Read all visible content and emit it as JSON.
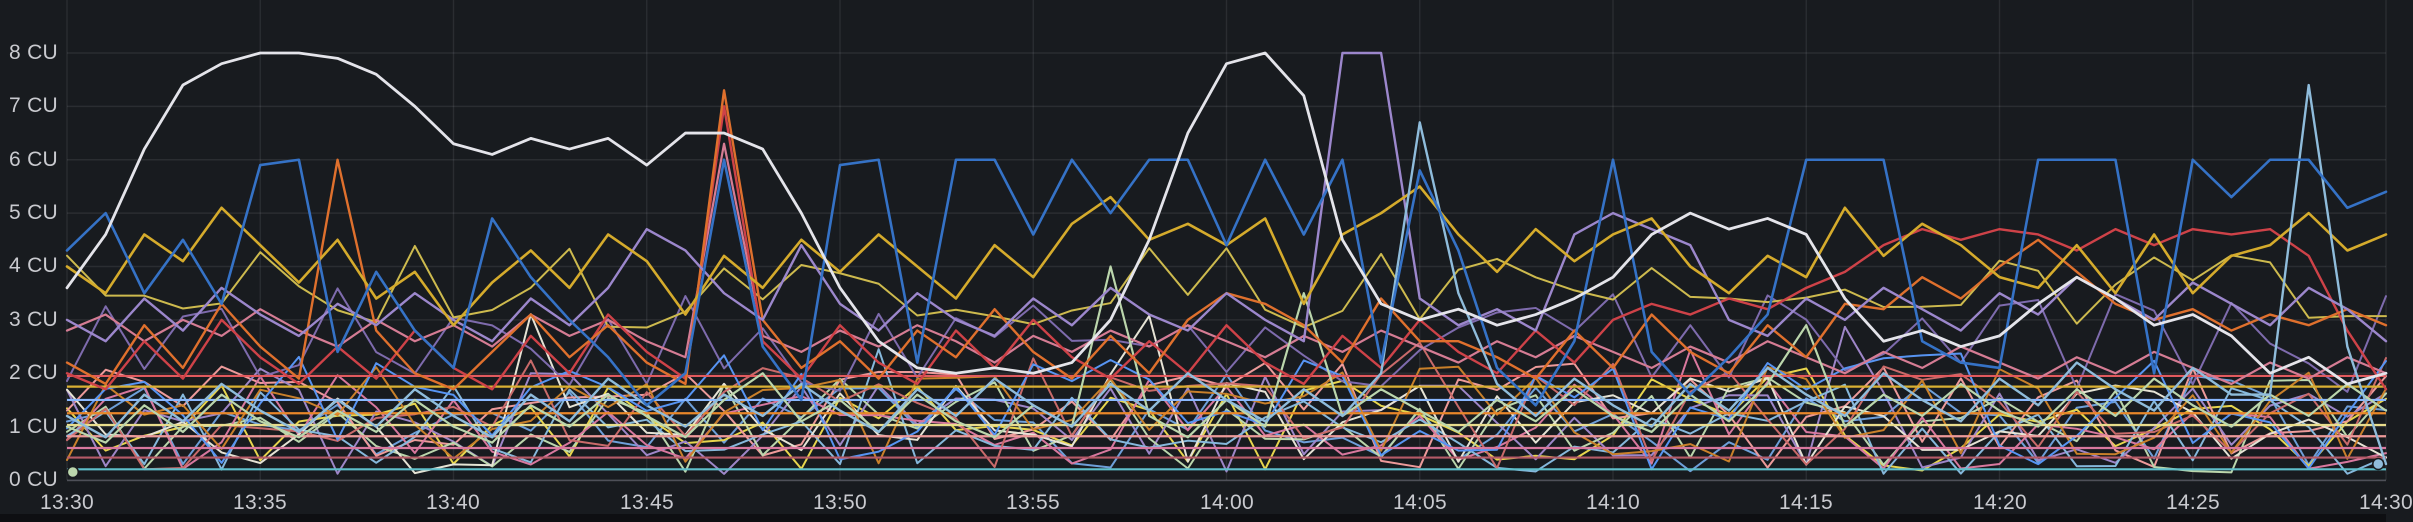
{
  "panel": {
    "background": "#181b1f",
    "text_color": "#c9cacf",
    "grid_color": "rgba(204,204,220,0.10)",
    "axis_line_color": "rgba(204,204,220,0.25)",
    "unit": "CU"
  },
  "chart_data": {
    "type": "line",
    "title": "",
    "xlabel": "",
    "ylabel": "CU",
    "ylim": [
      0,
      9
    ],
    "x_range_minutes": [
      0,
      60
    ],
    "sample_interval_minutes": 1,
    "grid": true,
    "legend_position": "none",
    "y_tick_labels": [
      "8 CU",
      "7 CU",
      "6 CU",
      "5 CU",
      "4 CU",
      "3 CU",
      "2 CU",
      "1 CU",
      "0 CU"
    ],
    "y_tick_values": [
      8,
      7,
      6,
      5,
      4,
      3,
      2,
      1,
      0
    ],
    "x_tick_labels": [
      "13:30",
      "13:35",
      "13:40",
      "13:45",
      "13:50",
      "13:55",
      "14:00",
      "14:05",
      "14:10",
      "14:15",
      "14:20",
      "14:25",
      "14:30"
    ],
    "series": [
      {
        "name": "series-pink",
        "color": "#d57c94",
        "width": 2.2,
        "values": [
          2.8,
          3.1,
          2.6,
          3,
          2.7,
          3.2,
          2.8,
          2.5,
          3,
          2.6,
          2.9,
          2.5,
          3.1,
          2.7,
          3,
          2.6,
          2.3,
          6.3,
          2.7,
          2.4,
          2.8,
          2.5,
          2.9,
          2.6,
          2.2,
          2.7,
          2.4,
          2.8,
          2.5,
          2.9,
          2.6,
          2.3,
          2.7,
          2.4,
          2.8,
          2.5,
          2.2,
          2.6,
          2.3,
          2.7,
          2.4,
          2.1,
          2.5,
          2.2,
          2.6,
          2.3,
          2,
          2.4,
          2.1,
          2.5,
          2.2,
          1.9,
          2.3,
          2,
          2.4,
          2.1,
          1.8,
          2.2,
          1.9,
          2.3,
          2
        ]
      },
      {
        "name": "series-green",
        "color": "#bbd6ac",
        "width": 2.2,
        "values": [
          1,
          0.7,
          1.4,
          0.9,
          1.6,
          1.1,
          0.8,
          1.3,
          0.9,
          1.5,
          1,
          0.7,
          1.4,
          1,
          1.6,
          1.2,
          0.8,
          1.5,
          2,
          1.1,
          1.5,
          0.9,
          1.6,
          1.1,
          0.8,
          1.4,
          1,
          4,
          1.2,
          0.8,
          1.5,
          1,
          3.5,
          1.2,
          1.7,
          1.3,
          0.9,
          1.5,
          1.1,
          1.7,
          1.2,
          0.9,
          1.6,
          1.1,
          1.8,
          2.9,
          1,
          1.6,
          1.2,
          1.8,
          1.3,
          1,
          1.7,
          1.2,
          1.9,
          1.4,
          1,
          1.6,
          1.2,
          1.8,
          1.3
        ]
      },
      {
        "name": "series-red",
        "color": "#ce4248",
        "width": 2.4,
        "values": [
          2,
          1.7,
          2.6,
          1.9,
          3,
          2.3,
          1.8,
          2.5,
          1.9,
          2.8,
          2.1,
          1.7,
          2.7,
          2,
          3.1,
          2.4,
          1.9,
          7,
          2.6,
          1.9,
          2.9,
          2.2,
          1.8,
          2.8,
          2.1,
          3,
          2.3,
          1.9,
          2.6,
          2,
          2.9,
          2.2,
          1.8,
          2.7,
          2.1,
          3,
          2.4,
          2,
          2.8,
          2.2,
          3,
          3.3,
          3.1,
          3.4,
          3.2,
          3.6,
          3.9,
          4.4,
          4.7,
          4.5,
          4.7,
          4.6,
          4.3,
          4.7,
          4.4,
          4.7,
          4.6,
          4.7,
          4.2,
          2.8,
          1.7
        ]
      },
      {
        "name": "series-orange",
        "color": "#df702d",
        "width": 2.4,
        "values": [
          2.2,
          1.8,
          2.9,
          2.1,
          3.3,
          2.5,
          1.9,
          6,
          2.8,
          2,
          1.7,
          2.4,
          3.1,
          2.3,
          2.9,
          2.2,
          1.8,
          7.3,
          3,
          2.1,
          2.6,
          1.9,
          2.8,
          2.3,
          3.2,
          2.4,
          1.9,
          2.7,
          2,
          3,
          3.5,
          3.3,
          2.9,
          2.2,
          3.4,
          2.6,
          2.6,
          2.3,
          1.9,
          2.8,
          2.1,
          3.1,
          2.4,
          2,
          2.9,
          2.3,
          3.3,
          3.2,
          3.8,
          3.4,
          4,
          4.5,
          3.9,
          3.3,
          3,
          3.2,
          2.8,
          3.1,
          2.9,
          3.2,
          2.9
        ]
      },
      {
        "name": "series-lavender",
        "color": "#9c87cc",
        "width": 2.4,
        "values": [
          3,
          2.6,
          3.4,
          2.8,
          3.6,
          3.1,
          2.7,
          3.3,
          2.9,
          3.5,
          3,
          2.6,
          3.4,
          2.9,
          3.6,
          4.7,
          4.3,
          3.5,
          3,
          4.4,
          3.3,
          2.8,
          3.5,
          3,
          2.7,
          3.4,
          2.9,
          3.6,
          3.1,
          2.8,
          3.5,
          3,
          2.6,
          8,
          8,
          3.4,
          2.9,
          3.2,
          2.8,
          4.6,
          5,
          4.7,
          4.4,
          3,
          2.7,
          3.4,
          3,
          3.6,
          3.2,
          2.8,
          3.5,
          3.1,
          3.8,
          3.4,
          3,
          3.7,
          3.3,
          2.9,
          3.6,
          3.2,
          2.6
        ]
      },
      {
        "name": "series-gold",
        "color": "#d5ab2c",
        "width": 2.6,
        "values": [
          4,
          3.5,
          4.6,
          4.1,
          5.1,
          4.4,
          3.7,
          4.5,
          3.4,
          3.9,
          2.9,
          3.7,
          4.3,
          3.6,
          4.6,
          4.1,
          3.1,
          4.2,
          3.6,
          4.5,
          3.9,
          4.6,
          4,
          3.4,
          4.4,
          3.8,
          4.8,
          5.3,
          4.5,
          4.8,
          4.4,
          4.9,
          3.3,
          4.6,
          5,
          5.5,
          4.6,
          3.9,
          4.7,
          4.1,
          4.6,
          4.9,
          4,
          3.5,
          4.2,
          3.8,
          5.1,
          4.2,
          4.8,
          4.4,
          3.8,
          3.6,
          4.4,
          3.5,
          4.6,
          3.5,
          4.2,
          4.4,
          5,
          4.3,
          4.6
        ]
      },
      {
        "name": "series-lightsteel",
        "color": "#8fbcdb",
        "width": 2.4,
        "values": [
          1.2,
          0.8,
          1.6,
          1.1,
          1.8,
          1.3,
          0.9,
          1.5,
          1,
          1.7,
          1.2,
          0.8,
          1.6,
          1.1,
          1.9,
          1.4,
          1,
          1.6,
          1.2,
          1.8,
          1.3,
          0.9,
          1.7,
          1.2,
          1.9,
          1.4,
          1,
          1.8,
          1.3,
          2,
          1.5,
          1.1,
          1.7,
          1.2,
          2,
          6.7,
          3.5,
          1.8,
          1.2,
          1.9,
          1.4,
          1,
          1.8,
          1.3,
          2.1,
          1.6,
          1.2,
          2,
          1.5,
          1.1,
          1.9,
          1.4,
          2.2,
          1.7,
          1.3,
          2.1,
          1.6,
          1.6,
          7.4,
          2.5,
          0.3
        ]
      },
      {
        "name": "series-blue",
        "color": "#3572c6",
        "width": 2.6,
        "values": [
          4.3,
          5,
          3.5,
          4.5,
          3.3,
          5.9,
          6,
          2.4,
          3.9,
          2.8,
          2.1,
          4.9,
          3.8,
          3,
          2.3,
          1.4,
          2,
          6,
          2.5,
          1.5,
          5.9,
          6,
          2.2,
          6,
          6,
          4.6,
          6,
          5,
          6,
          6,
          4.4,
          6,
          4.6,
          6,
          2.2,
          5.8,
          4.3,
          2.1,
          1.4,
          2.6,
          6,
          2.4,
          1.6,
          2.3,
          3.1,
          6,
          6,
          6,
          2.6,
          2.2,
          2.1,
          6,
          6,
          6,
          2,
          6,
          5.3,
          6,
          6,
          5.1,
          5.4
        ]
      },
      {
        "name": "series-white",
        "color": "#e4e4ea",
        "width": 2.8,
        "values": [
          3.6,
          4.6,
          6.2,
          7.4,
          7.8,
          8,
          8,
          7.9,
          7.6,
          7,
          6.3,
          6.1,
          6.4,
          6.2,
          6.4,
          5.9,
          6.5,
          6.5,
          6.2,
          5,
          3.6,
          2.6,
          2.1,
          2,
          2.1,
          2,
          2.2,
          3,
          4.5,
          6.5,
          7.8,
          8,
          7.2,
          4.5,
          3.3,
          3,
          3.2,
          2.9,
          3.1,
          3.4,
          3.8,
          4.6,
          5,
          4.7,
          4.9,
          4.6,
          3.4,
          2.6,
          2.8,
          2.5,
          2.7,
          3.3,
          3.8,
          3.4,
          2.9,
          3.1,
          2.7,
          2,
          2.3,
          1.8,
          2
        ]
      }
    ],
    "flat_series": [
      {
        "name": "flat-red",
        "color": "#e15a5e",
        "value": 1.95
      },
      {
        "name": "flat-gold",
        "color": "#d9b033",
        "value": 1.75
      },
      {
        "name": "flat-lightblue",
        "color": "#8ab8ff",
        "value": 1.5
      },
      {
        "name": "flat-orange",
        "color": "#e8872a",
        "value": 1.25
      },
      {
        "name": "flat-paleyellow",
        "color": "#e8dc8c",
        "value": 1.03
      },
      {
        "name": "flat-salmon",
        "color": "#ed9a9a",
        "value": 0.82
      },
      {
        "name": "flat-pink",
        "color": "#d8789e",
        "value": 0.6
      },
      {
        "name": "flat-maroon",
        "color": "#b55a67",
        "value": 0.42
      },
      {
        "name": "flat-teal",
        "color": "#5fbfcb",
        "value": 0.2
      }
    ],
    "noise_series": [
      {
        "name": "noise-blue",
        "color": "#6e9fd9",
        "seed": 11,
        "min": 0.15,
        "max": 2.0,
        "spike_chance": 0.05,
        "spike_amount": 1.6
      },
      {
        "name": "noise-yellow",
        "color": "#e7d54d",
        "seed": 22,
        "min": 0.1,
        "max": 2.1,
        "spike_chance": 0.05,
        "spike_amount": 1.7
      },
      {
        "name": "noise-salmon",
        "color": "#ed9a9a",
        "seed": 33,
        "min": 0.2,
        "max": 2.2,
        "spike_chance": 0.04,
        "spike_amount": 1.4
      },
      {
        "name": "noise-purple",
        "color": "#9e86c8",
        "seed": 44,
        "min": 0.1,
        "max": 2.0,
        "spike_chance": 0.05,
        "spike_amount": 1.5
      },
      {
        "name": "noise-green",
        "color": "#bbd6ac",
        "seed": 55,
        "min": 0.1,
        "max": 1.9,
        "spike_chance": 0.04,
        "spike_amount": 1.5
      },
      {
        "name": "noise-pink",
        "color": "#d8789e",
        "seed": 66,
        "min": 0.2,
        "max": 2.0,
        "spike_chance": 0.04,
        "spike_amount": 1.3
      },
      {
        "name": "noise-steel",
        "color": "#86b8dc",
        "seed": 77,
        "min": 0.1,
        "max": 1.8,
        "spike_chance": 0.04,
        "spike_amount": 1.5
      },
      {
        "name": "noise-white",
        "color": "#e6e3d5",
        "seed": 88,
        "min": 0.1,
        "max": 2.0,
        "spike_chance": 0.04,
        "spike_amount": 1.4
      },
      {
        "name": "noise-darkred",
        "color": "#c96a6a",
        "seed": 99,
        "min": 0.2,
        "max": 2.3,
        "spike_chance": 0.04,
        "spike_amount": 1.3
      },
      {
        "name": "noise-midpurple",
        "color": "#7e6bad",
        "seed": 110,
        "min": 1.6,
        "max": 3.6,
        "spike_chance": 0.0,
        "spike_amount": 0
      },
      {
        "name": "noise-amber",
        "color": "#c9802a",
        "seed": 121,
        "min": 0.3,
        "max": 2.2,
        "spike_chance": 0.04,
        "spike_amount": 1.4
      },
      {
        "name": "noise-brightblue",
        "color": "#5794f2",
        "seed": 132,
        "min": 0.2,
        "max": 2.4,
        "spike_chance": 0.04,
        "spike_amount": 1.5
      },
      {
        "name": "noise-olive",
        "color": "#cdba4e",
        "seed": 143,
        "min": 2.8,
        "max": 4.4,
        "spike_chance": 0.0,
        "spike_amount": 0
      }
    ],
    "markers": [
      {
        "name": "start-point",
        "t": 0.15,
        "value": 0.15,
        "color": "#bbd6ac"
      },
      {
        "name": "end-point",
        "t": 59.8,
        "value": 0.3,
        "color": "#8fbcdb"
      }
    ]
  }
}
